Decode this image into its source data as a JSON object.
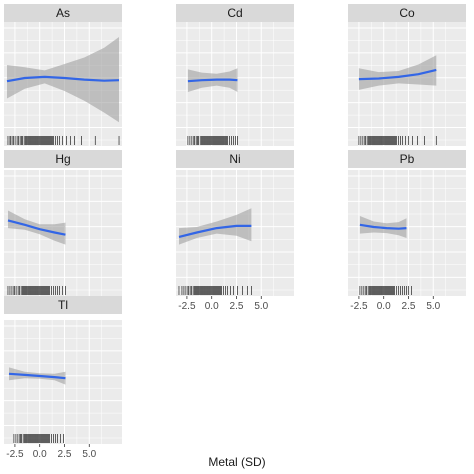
{
  "chart_data": {
    "type": "line",
    "xlabel": "Metal (SD)",
    "xlim": [
      -3.6,
      8.3
    ],
    "ylim": [
      -1,
      1
    ],
    "grid": true,
    "x_ticks": [
      "-2.5",
      "0.0",
      "2.5",
      "5.0"
    ],
    "x_tick_values": [
      -2.5,
      0.0,
      2.5,
      5.0
    ],
    "colors": {
      "line": "#3366e6",
      "band": "#999999",
      "panel_bg": "#ebebeb",
      "strip_bg": "#d9d9d9",
      "grid": "#ffffff"
    },
    "panels": [
      {
        "label": "As",
        "x": [
          -3.3,
          -1.5,
          0.5,
          2.5,
          4.5,
          6.5,
          8.0
        ],
        "y": [
          -0.06,
          0.0,
          0.02,
          0.0,
          -0.03,
          -0.05,
          -0.04
        ],
        "lower": [
          -0.38,
          -0.2,
          -0.1,
          -0.24,
          -0.42,
          -0.64,
          -0.82
        ],
        "upper": [
          0.24,
          0.2,
          0.14,
          0.26,
          0.38,
          0.56,
          0.76
        ],
        "rug": [
          -3.2,
          -3.0,
          -2.9,
          -2.7,
          -2.6,
          -2.4,
          -2.2,
          -2.1,
          -1.9,
          -1.8,
          -1.7,
          -1.5,
          -1.4,
          -1.3,
          -1.2,
          -1.1,
          -1.0,
          -0.9,
          -0.8,
          -0.7,
          -0.6,
          -0.5,
          -0.4,
          -0.3,
          -0.2,
          -0.1,
          0.0,
          0.1,
          0.2,
          0.3,
          0.4,
          0.5,
          0.6,
          0.7,
          0.8,
          0.9,
          1.0,
          1.1,
          1.2,
          1.3,
          1.4,
          1.6,
          1.8,
          2.0,
          2.3,
          2.7,
          3.1,
          3.5,
          4.2,
          5.6,
          8.0
        ]
      },
      {
        "label": "Cd",
        "x": [
          -2.4,
          -1.0,
          0.5,
          1.8,
          2.6
        ],
        "y": [
          -0.06,
          -0.04,
          -0.03,
          -0.03,
          -0.04
        ],
        "lower": [
          -0.26,
          -0.18,
          -0.14,
          -0.18,
          -0.26
        ],
        "upper": [
          0.16,
          0.1,
          0.08,
          0.12,
          0.18
        ],
        "rug": [
          -2.4,
          -2.2,
          -2.0,
          -1.8,
          -1.7,
          -1.5,
          -1.4,
          -1.3,
          -1.1,
          -1.0,
          -0.9,
          -0.8,
          -0.7,
          -0.6,
          -0.5,
          -0.4,
          -0.3,
          -0.2,
          -0.1,
          0.0,
          0.1,
          0.2,
          0.3,
          0.4,
          0.5,
          0.6,
          0.7,
          0.8,
          0.9,
          1.0,
          1.1,
          1.2,
          1.3,
          1.4,
          1.5,
          1.6,
          1.8,
          2.0,
          2.2,
          2.4,
          2.6
        ]
      },
      {
        "label": "Co",
        "x": [
          -2.5,
          -0.5,
          1.5,
          3.5,
          5.3
        ],
        "y": [
          -0.02,
          -0.01,
          0.02,
          0.07,
          0.15
        ],
        "lower": [
          -0.22,
          -0.14,
          -0.1,
          -0.12,
          -0.14
        ],
        "upper": [
          0.18,
          0.11,
          0.13,
          0.25,
          0.42
        ],
        "rug": [
          -2.5,
          -2.3,
          -2.1,
          -1.9,
          -1.8,
          -1.6,
          -1.5,
          -1.4,
          -1.3,
          -1.2,
          -1.1,
          -1.0,
          -0.9,
          -0.8,
          -0.7,
          -0.6,
          -0.5,
          -0.4,
          -0.3,
          -0.2,
          -0.1,
          0.0,
          0.1,
          0.2,
          0.3,
          0.4,
          0.5,
          0.6,
          0.7,
          0.8,
          0.9,
          1.0,
          1.1,
          1.2,
          1.3,
          1.5,
          1.7,
          1.9,
          2.2,
          2.5,
          2.9,
          3.4,
          4.1,
          5.3
        ]
      },
      {
        "label": "Hg",
        "x": [
          -3.2,
          -1.5,
          0.0,
          1.5,
          2.6
        ],
        "y": [
          0.12,
          0.04,
          -0.04,
          -0.1,
          -0.14
        ],
        "lower": [
          -0.02,
          -0.05,
          -0.13,
          -0.25,
          -0.32
        ],
        "upper": [
          0.3,
          0.14,
          0.05,
          0.05,
          0.08
        ],
        "rug": [
          -3.2,
          -3.0,
          -2.8,
          -2.6,
          -2.5,
          -2.3,
          -2.1,
          -2.0,
          -1.8,
          -1.7,
          -1.6,
          -1.5,
          -1.4,
          -1.3,
          -1.2,
          -1.1,
          -1.0,
          -0.9,
          -0.8,
          -0.7,
          -0.6,
          -0.5,
          -0.4,
          -0.3,
          -0.2,
          -0.1,
          0.0,
          0.1,
          0.2,
          0.3,
          0.4,
          0.5,
          0.6,
          0.7,
          0.8,
          0.9,
          1.0,
          1.2,
          1.4,
          1.6,
          1.8,
          2.0,
          2.3,
          2.6
        ]
      },
      {
        "label": "Ni",
        "x": [
          -3.3,
          -1.5,
          0.5,
          2.5,
          4.0
        ],
        "y": [
          -0.18,
          -0.1,
          -0.02,
          0.02,
          0.02
        ],
        "lower": [
          -0.32,
          -0.2,
          -0.12,
          -0.16,
          -0.26
        ],
        "upper": [
          -0.02,
          0.0,
          0.1,
          0.22,
          0.34
        ],
        "rug": [
          -3.3,
          -3.0,
          -2.8,
          -2.6,
          -2.4,
          -2.3,
          -2.1,
          -2.0,
          -1.8,
          -1.7,
          -1.6,
          -1.5,
          -1.4,
          -1.3,
          -1.2,
          -1.1,
          -1.0,
          -0.9,
          -0.8,
          -0.7,
          -0.6,
          -0.5,
          -0.4,
          -0.3,
          -0.2,
          -0.1,
          0.0,
          0.1,
          0.2,
          0.3,
          0.4,
          0.5,
          0.6,
          0.7,
          0.8,
          0.9,
          1.0,
          1.2,
          1.4,
          1.6,
          1.9,
          2.2,
          2.6,
          3.1,
          3.6,
          4.0
        ]
      },
      {
        "label": "Pb",
        "x": [
          -2.4,
          -1.0,
          0.3,
          1.5,
          2.3
        ],
        "y": [
          0.04,
          0.0,
          -0.02,
          -0.03,
          -0.02
        ],
        "lower": [
          -0.12,
          -0.1,
          -0.11,
          -0.15,
          -0.2
        ],
        "upper": [
          0.2,
          0.1,
          0.07,
          0.09,
          0.16
        ],
        "rug": [
          -2.4,
          -2.2,
          -2.0,
          -1.8,
          -1.7,
          -1.5,
          -1.4,
          -1.3,
          -1.2,
          -1.1,
          -1.0,
          -0.9,
          -0.8,
          -0.7,
          -0.6,
          -0.5,
          -0.4,
          -0.3,
          -0.2,
          -0.1,
          0.0,
          0.1,
          0.2,
          0.3,
          0.4,
          0.5,
          0.6,
          0.7,
          0.8,
          0.9,
          1.0,
          1.1,
          1.3,
          1.5,
          1.7,
          1.9,
          2.1,
          2.3,
          2.5,
          2.8
        ]
      },
      {
        "label": "Tl",
        "x": [
          -3.1,
          -1.5,
          0.0,
          1.5,
          2.6
        ],
        "y": [
          0.04,
          0.02,
          0.0,
          -0.02,
          -0.04
        ],
        "lower": [
          -0.08,
          -0.04,
          -0.05,
          -0.08,
          -0.16
        ],
        "upper": [
          0.16,
          0.08,
          0.05,
          0.04,
          0.08
        ],
        "rug": [
          -2.6,
          -2.4,
          -2.2,
          -2.0,
          -1.9,
          -1.8,
          -1.6,
          -1.5,
          -1.4,
          -1.3,
          -1.2,
          -1.1,
          -1.0,
          -0.9,
          -0.8,
          -0.7,
          -0.6,
          -0.5,
          -0.4,
          -0.3,
          -0.2,
          -0.1,
          0.0,
          0.1,
          0.2,
          0.3,
          0.4,
          0.5,
          0.6,
          0.7,
          0.8,
          0.9,
          1.0,
          1.2,
          1.4,
          1.6,
          1.8,
          2.1,
          2.4
        ]
      }
    ]
  }
}
